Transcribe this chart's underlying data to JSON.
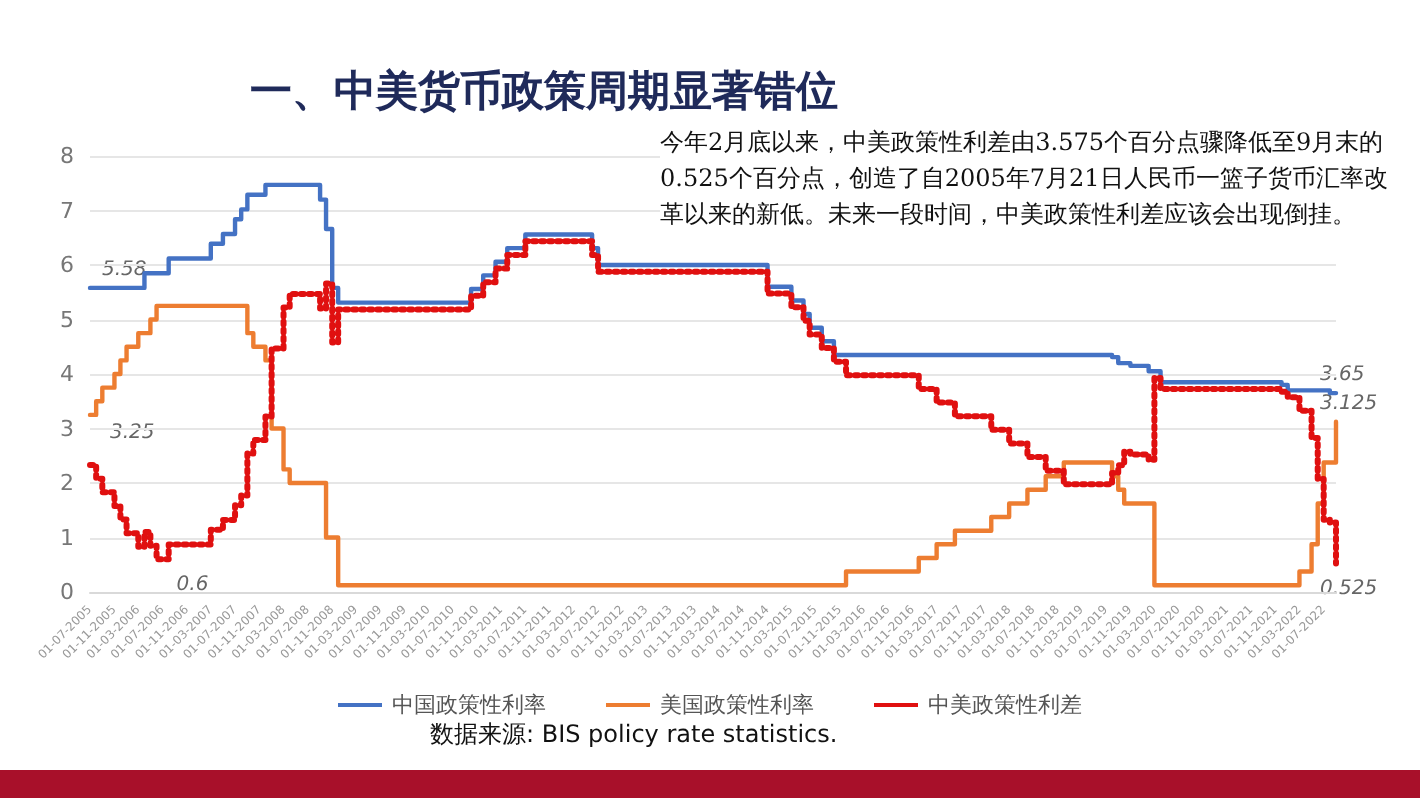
{
  "chart_data": {
    "type": "step",
    "title": "一、中美货币政策周期显著错位",
    "annotations": [
      "今年2月底以来，中美政策性利差由3.575个百分点骤降低至9月末的0.525个百分点，创造了自2005年7月21日人民币一篮子货币汇率改革以来的新低。未来一段时间，中美政策性利差应该会出现倒挂。",
      "数据来源: BIS policy rate statistics.",
      {
        "text": "5.58",
        "x": "2005-07",
        "y": 5.58
      },
      {
        "text": "3.25",
        "x": "2005-07",
        "y": 3.25
      },
      {
        "text": "0.6",
        "x": "2006-06",
        "y": 0.6
      },
      {
        "text": "3.65",
        "x": "2022-09",
        "y": 3.65
      },
      {
        "text": "3.125",
        "x": "2022-09",
        "y": 3.125
      },
      {
        "text": "0.525",
        "x": "2022-09",
        "y": 0.525
      }
    ],
    "series": [
      {
        "name": "中国政策性利率",
        "color": "#4472c4",
        "line_style": "solid",
        "x": [
          "2005-07",
          "2006-04",
          "2006-08",
          "2007-03",
          "2007-05",
          "2007-07",
          "2007-08",
          "2007-09",
          "2007-12",
          "2008-09",
          "2008-10",
          "2008-11",
          "2008-12",
          "2010-10",
          "2010-12",
          "2011-02",
          "2011-04",
          "2011-07",
          "2012-06",
          "2012-07",
          "2014-11",
          "2015-03",
          "2015-05",
          "2015-06",
          "2015-08",
          "2015-10",
          "2019-08",
          "2019-09",
          "2019-11",
          "2020-02",
          "2020-04",
          "2021-12",
          "2022-01",
          "2022-08",
          "2022-09"
        ],
        "values": [
          5.58,
          5.85,
          6.12,
          6.39,
          6.57,
          6.84,
          7.02,
          7.29,
          7.47,
          7.2,
          6.66,
          5.58,
          5.31,
          5.56,
          5.81,
          6.06,
          6.31,
          6.56,
          6.31,
          6,
          5.6,
          5.35,
          5.1,
          4.85,
          4.6,
          4.35,
          4.31,
          4.2,
          4.15,
          4.05,
          3.85,
          3.8,
          3.7,
          3.65,
          3.65
        ]
      },
      {
        "name": "美国政策性利率",
        "color": "#ed7d31",
        "line_style": "solid",
        "x": [
          "2005-07",
          "2005-08",
          "2005-09",
          "2005-11",
          "2005-12",
          "2006-01",
          "2006-03",
          "2006-05",
          "2006-06",
          "2007-09",
          "2007-10",
          "2007-12",
          "2008-01",
          "2008-03",
          "2008-04",
          "2008-10",
          "2008-12",
          "2015-12",
          "2016-12",
          "2017-03",
          "2017-06",
          "2017-12",
          "2018-03",
          "2018-06",
          "2018-09",
          "2018-12",
          "2019-08",
          "2019-09",
          "2019-10",
          "2020-03",
          "2022-03",
          "2022-05",
          "2022-06",
          "2022-07",
          "2022-09"
        ],
        "values": [
          3.25,
          3.5,
          3.75,
          4,
          4.25,
          4.5,
          4.75,
          5,
          5.25,
          4.75,
          4.5,
          4.25,
          3,
          2.25,
          2,
          1,
          0.125,
          0.375,
          0.625,
          0.875,
          1.125,
          1.375,
          1.625,
          1.875,
          2.125,
          2.375,
          2.125,
          1.875,
          1.625,
          0.125,
          0.375,
          0.875,
          1.625,
          2.375,
          3.125
        ]
      },
      {
        "name": "中美政策性利差",
        "color": "#e01010",
        "line_style": "dotted",
        "x": [
          "2005-07",
          "2005-08",
          "2005-09",
          "2005-11",
          "2005-12",
          "2006-01",
          "2006-03",
          "2006-04",
          "2006-05",
          "2006-06",
          "2006-08",
          "2007-03",
          "2007-05",
          "2007-07",
          "2007-08",
          "2007-09",
          "2007-10",
          "2007-12",
          "2008-01",
          "2008-03",
          "2008-04",
          "2008-09",
          "2008-10",
          "2008-11",
          "2008-12",
          "2010-10",
          "2010-12",
          "2011-02",
          "2011-04",
          "2011-07",
          "2012-06",
          "2012-07",
          "2014-11",
          "2015-03",
          "2015-05",
          "2015-06",
          "2015-08",
          "2015-10",
          "2015-12",
          "2016-12",
          "2017-03",
          "2017-06",
          "2017-12",
          "2018-03",
          "2018-06",
          "2018-09",
          "2018-12",
          "2019-08",
          "2019-09",
          "2019-10",
          "2019-11",
          "2020-02",
          "2020-03",
          "2020-04",
          "2021-12",
          "2022-01",
          "2022-03",
          "2022-05",
          "2022-06",
          "2022-07",
          "2022-08",
          "2022-09"
        ],
        "values": [
          2.33,
          2.08,
          1.83,
          1.58,
          1.33,
          1.08,
          0.83,
          1.1,
          0.85,
          0.6,
          0.87,
          1.14,
          1.32,
          1.59,
          1.77,
          2.54,
          2.79,
          3.22,
          4.47,
          5.22,
          5.47,
          5.2,
          5.66,
          4.58,
          5.185,
          5.435,
          5.685,
          5.935,
          6.185,
          6.435,
          6.185,
          5.875,
          5.475,
          5.225,
          4.975,
          4.725,
          4.475,
          4.225,
          3.975,
          3.725,
          3.475,
          3.225,
          2.975,
          2.725,
          2.475,
          2.225,
          1.975,
          2.185,
          2.325,
          2.575,
          2.525,
          2.425,
          3.925,
          3.725,
          3.675,
          3.575,
          3.325,
          2.825,
          2.075,
          1.325,
          1.275,
          0.525
        ]
      }
    ],
    "xlim": [
      "2005-07",
      "2022-09"
    ],
    "xticks": [
      {
        "value": "2005-07",
        "label": "01-07-2005"
      },
      {
        "value": "2005-11",
        "label": "01-11-2005"
      },
      {
        "value": "2006-03",
        "label": "01-03-2006"
      },
      {
        "value": "2006-07",
        "label": "01-07-2006"
      },
      {
        "value": "2006-11",
        "label": "01-11-2006"
      },
      {
        "value": "2007-03",
        "label": "01-03-2007"
      },
      {
        "value": "2007-07",
        "label": "01-07-2007"
      },
      {
        "value": "2007-11",
        "label": "01-11-2007"
      },
      {
        "value": "2008-03",
        "label": "01-03-2008"
      },
      {
        "value": "2008-07",
        "label": "01-07-2008"
      },
      {
        "value": "2008-11",
        "label": "01-11-2008"
      },
      {
        "value": "2009-03",
        "label": "01-03-2009"
      },
      {
        "value": "2009-07",
        "label": "01-07-2009"
      },
      {
        "value": "2009-11",
        "label": "01-11-2009"
      },
      {
        "value": "2010-03",
        "label": "01-03-2010"
      },
      {
        "value": "2010-07",
        "label": "01-07-2010"
      },
      {
        "value": "2010-11",
        "label": "01-11-2010"
      },
      {
        "value": "2011-03",
        "label": "01-03-2011"
      },
      {
        "value": "2011-07",
        "label": "01-07-2011"
      },
      {
        "value": "2011-11",
        "label": "01-11-2011"
      },
      {
        "value": "2012-03",
        "label": "01-03-2012"
      },
      {
        "value": "2012-07",
        "label": "01-07-2012"
      },
      {
        "value": "2012-11",
        "label": "01-11-2012"
      },
      {
        "value": "2013-03",
        "label": "01-03-2013"
      },
      {
        "value": "2013-07",
        "label": "01-07-2013"
      },
      {
        "value": "2013-11",
        "label": "01-11-2013"
      },
      {
        "value": "2014-03",
        "label": "01-03-2014"
      },
      {
        "value": "2014-07",
        "label": "01-07-2014"
      },
      {
        "value": "2014-11",
        "label": "01-11-2014"
      },
      {
        "value": "2015-03",
        "label": "01-03-2015"
      },
      {
        "value": "2015-07",
        "label": "01-07-2015"
      },
      {
        "value": "2015-11",
        "label": "01-11-2015"
      },
      {
        "value": "2016-03",
        "label": "01-03-2016"
      },
      {
        "value": "2016-07",
        "label": "01-07-2016"
      },
      {
        "value": "2016-11",
        "label": "01-11-2016"
      },
      {
        "value": "2017-03",
        "label": "01-03-2017"
      },
      {
        "value": "2017-07",
        "label": "01-07-2017"
      },
      {
        "value": "2017-11",
        "label": "01-11-2017"
      },
      {
        "value": "2018-03",
        "label": "01-03-2018"
      },
      {
        "value": "2018-07",
        "label": "01-07-2018"
      },
      {
        "value": "2018-11",
        "label": "01-11-2018"
      },
      {
        "value": "2019-03",
        "label": "01-03-2019"
      },
      {
        "value": "2019-07",
        "label": "01-07-2019"
      },
      {
        "value": "2019-11",
        "label": "01-11-2019"
      },
      {
        "value": "2020-03",
        "label": "01-03-2020"
      },
      {
        "value": "2020-07",
        "label": "01-07-2020"
      },
      {
        "value": "2020-11",
        "label": "01-11-2020"
      },
      {
        "value": "2021-03",
        "label": "01-03-2021"
      },
      {
        "value": "2021-07",
        "label": "01-07-2021"
      },
      {
        "value": "2021-11",
        "label": "01-11-2021"
      },
      {
        "value": "2022-03",
        "label": "01-03-2022"
      },
      {
        "value": "2022-07",
        "label": "01-07-2022"
      }
    ],
    "ylim": [
      0,
      8
    ],
    "yticks": [
      0,
      1,
      2,
      3,
      4,
      5,
      6,
      7,
      8
    ],
    "grid": "y",
    "legend": "bottom",
    "marker": "none"
  }
}
